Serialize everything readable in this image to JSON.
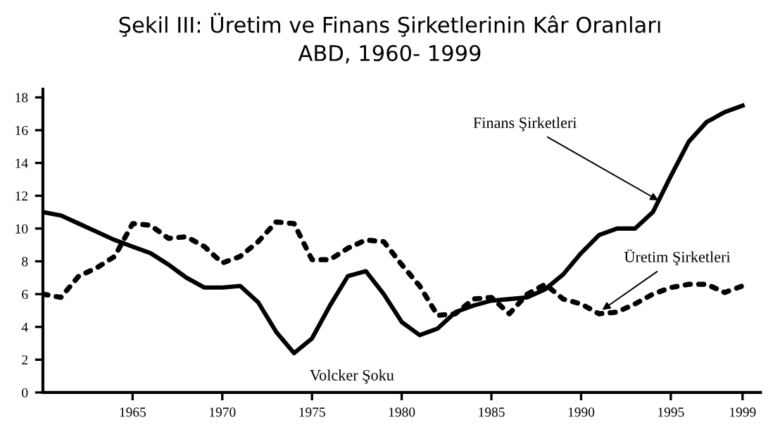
{
  "chart_data": {
    "type": "line",
    "title": "Şekil III: Üretim ve Finans Şirketlerinin Kâr Oranları",
    "subtitle": "ABD, 1960- 1999",
    "x": [
      1960,
      1961,
      1962,
      1963,
      1964,
      1965,
      1966,
      1967,
      1968,
      1969,
      1970,
      1971,
      1972,
      1973,
      1974,
      1975,
      1976,
      1977,
      1978,
      1979,
      1980,
      1981,
      1982,
      1983,
      1984,
      1985,
      1986,
      1987,
      1988,
      1989,
      1990,
      1991,
      1992,
      1993,
      1994,
      1995,
      1996,
      1997,
      1998,
      1999
    ],
    "series": [
      {
        "color": "#000000",
        "line_style": "solid",
        "values": [
          11.0,
          10.8,
          10.3,
          9.8,
          9.3,
          8.9,
          8.5,
          7.8,
          7.0,
          6.4,
          6.4,
          6.5,
          5.5,
          3.7,
          2.4,
          3.3,
          5.3,
          7.1,
          7.4,
          6.0,
          4.3,
          3.5,
          3.9,
          4.9,
          5.3,
          5.6,
          5.7,
          5.8,
          6.3,
          7.2,
          8.5,
          9.6,
          10.0,
          10.0,
          11.0,
          13.2,
          15.3,
          16.5,
          17.1,
          17.5
        ]
      },
      {
        "color": "#000000",
        "line_style": "dotted",
        "values": [
          6.0,
          5.8,
          7.1,
          7.6,
          8.3,
          10.3,
          10.2,
          9.4,
          9.5,
          8.9,
          7.9,
          8.3,
          9.2,
          10.4,
          10.3,
          8.1,
          8.1,
          8.8,
          9.3,
          9.2,
          7.8,
          6.5,
          4.7,
          4.8,
          5.7,
          5.8,
          4.8,
          6.0,
          6.6,
          5.7,
          5.4,
          4.8,
          4.9,
          5.4,
          6.0,
          6.4,
          6.6,
          6.6,
          6.1,
          6.5
        ]
      }
    ],
    "xlim": [
      1960,
      2000
    ],
    "xticks": [
      1965,
      1970,
      1975,
      1980,
      1985,
      1990,
      1995,
      1999
    ],
    "ylim": [
      0,
      18.5
    ],
    "yticks": [
      0,
      2,
      4,
      6,
      8,
      10,
      12,
      14,
      16,
      18
    ],
    "grid": false,
    "legend": false,
    "annotations": [
      {
        "text": "Finans Şirketleri",
        "x": 1994.5,
        "y": 11.6
      },
      {
        "text": "Üretim Şirketleri",
        "x": 1991,
        "y": 4.9
      },
      {
        "text": "Volcker Şoku",
        "x": 1974,
        "y": 2.4
      }
    ]
  }
}
